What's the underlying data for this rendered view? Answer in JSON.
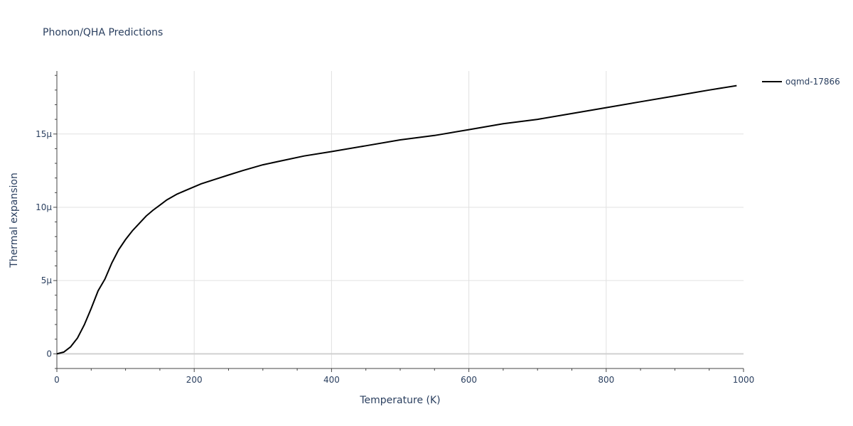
{
  "chart_data": {
    "type": "line",
    "title": "Phonon/QHA Predictions",
    "xlabel": "Temperature (K)",
    "ylabel": "Thermal expansion",
    "xlim": [
      0,
      1000
    ],
    "ylim": [
      -1e-06,
      1.93e-05
    ],
    "x_ticks": [
      0,
      200,
      400,
      600,
      800,
      1000
    ],
    "x_tick_labels": [
      "0",
      "200",
      "400",
      "600",
      "800",
      "1000"
    ],
    "y_ticks": [
      0,
      5e-06,
      1e-05,
      1.5e-05
    ],
    "y_tick_labels": [
      "0",
      "5μ",
      "10μ",
      "15μ"
    ],
    "grid": true,
    "legend_position": "top-right",
    "series": [
      {
        "name": "oqmd-17866",
        "color": "#000000",
        "x": [
          0,
          10,
          20,
          30,
          40,
          50,
          60,
          70,
          80,
          90,
          100,
          110,
          120,
          130,
          140,
          150,
          160,
          175,
          190,
          210,
          230,
          250,
          270,
          300,
          330,
          360,
          400,
          450,
          500,
          550,
          600,
          650,
          700,
          750,
          800,
          850,
          900,
          950,
          990
        ],
        "y": [
          0,
          1.2e-07,
          4.8e-07,
          1.08e-06,
          1.98e-06,
          3.1e-06,
          4.3e-06,
          5.1e-06,
          6.2e-06,
          7.1e-06,
          7.8e-06,
          8.4e-06,
          8.9e-06,
          9.4e-06,
          9.8e-06,
          1.015e-05,
          1.05e-05,
          1.09e-05,
          1.12e-05,
          1.16e-05,
          1.19e-05,
          1.22e-05,
          1.25e-05,
          1.29e-05,
          1.32e-05,
          1.35e-05,
          1.38e-05,
          1.42e-05,
          1.46e-05,
          1.49e-05,
          1.53e-05,
          1.57e-05,
          1.6e-05,
          1.64e-05,
          1.68e-05,
          1.72e-05,
          1.76e-05,
          1.8e-05,
          1.83e-05
        ]
      }
    ]
  }
}
